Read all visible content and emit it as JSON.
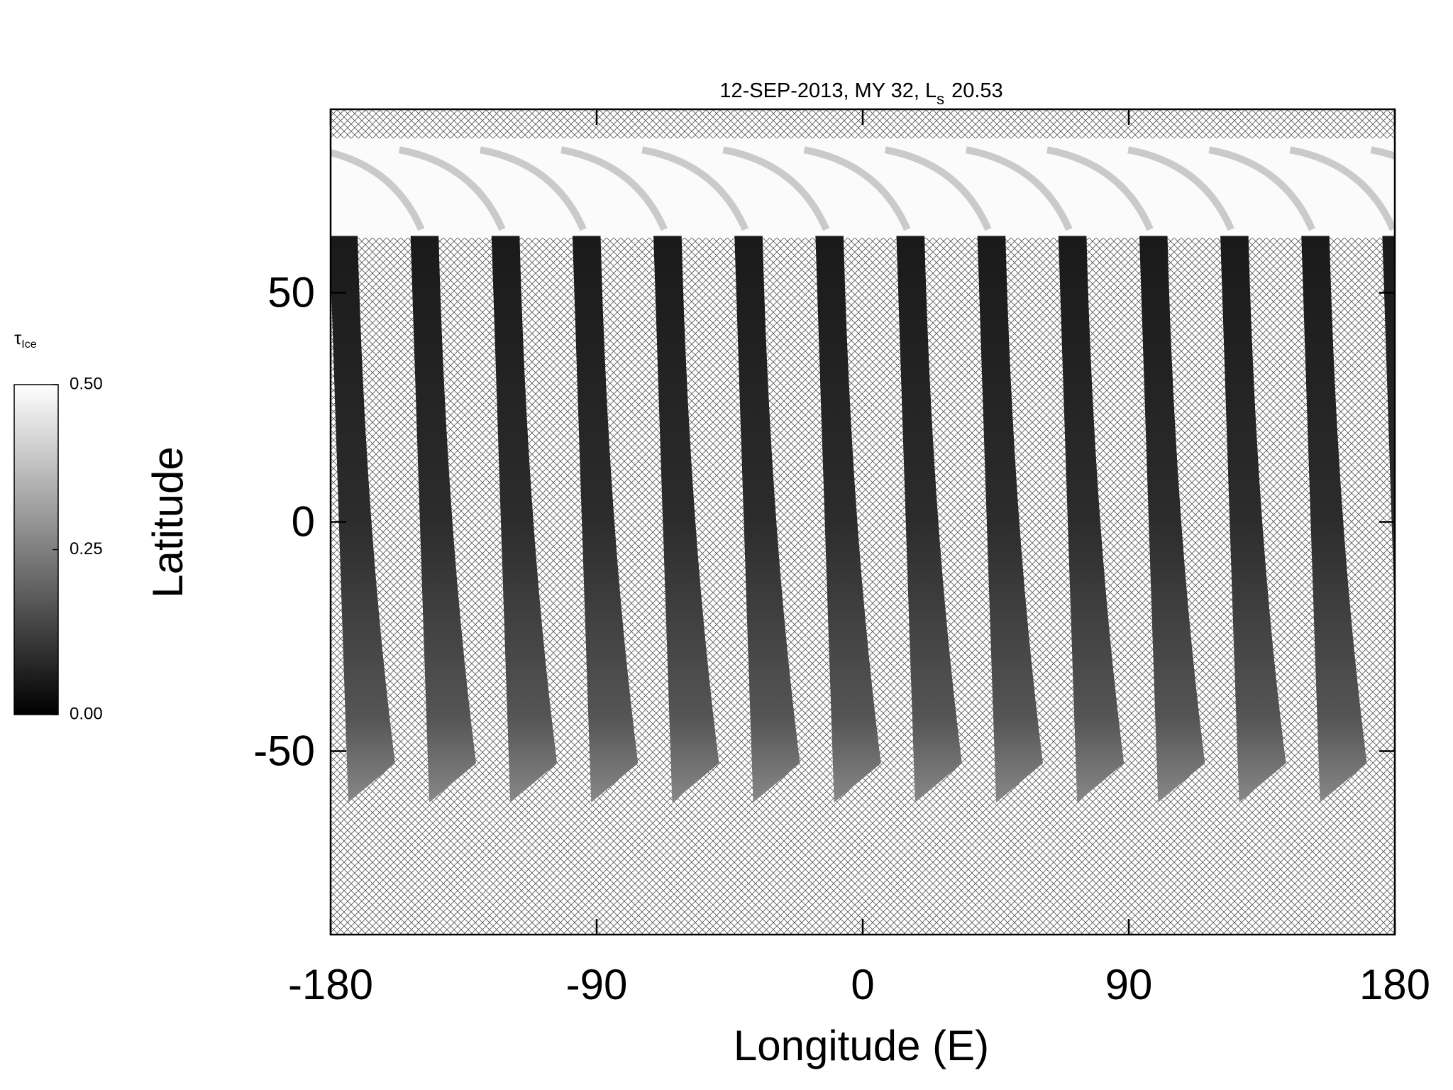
{
  "chart_data": {
    "type": "map",
    "title": {
      "main": "12-SEP-2013, MY 32,  L",
      "sub": "s",
      "value": "20.53"
    },
    "xlabel": "Longitude (E)",
    "ylabel": "Latitude",
    "xlim": [
      -180,
      180
    ],
    "xticks": [
      -180,
      -90,
      0,
      90,
      180
    ],
    "ylim": [
      -90,
      90
    ],
    "yticks": [
      -50,
      0,
      50
    ],
    "colorbar": {
      "label": "τ",
      "label_sub": "Ice",
      "clim": [
        0,
        0.5
      ],
      "ticks": [
        {
          "value": 0,
          "label": "0.00"
        },
        {
          "value": 0.25,
          "label": "0.25"
        },
        {
          "value": 0.5,
          "label": "0.50"
        }
      ],
      "colors": [
        "#000000",
        "#ffffff"
      ]
    }
  }
}
